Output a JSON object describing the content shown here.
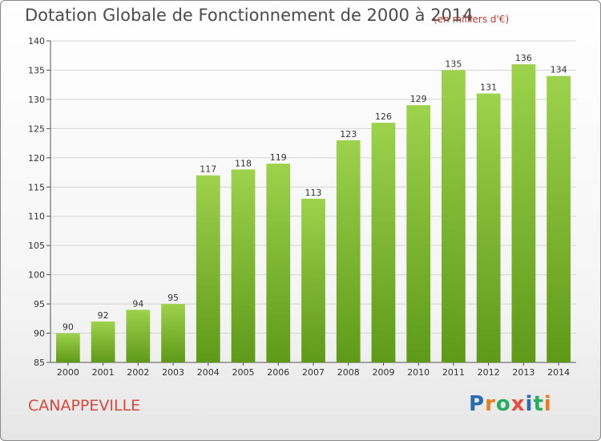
{
  "chart_data": {
    "type": "bar",
    "title": "Dotation Globale de Fonctionnement de 2000 à 2014",
    "unit_note": "(en milliers d'€)",
    "categories": [
      "2000",
      "2001",
      "2002",
      "2003",
      "2004",
      "2005",
      "2006",
      "2007",
      "2008",
      "2009",
      "2010",
      "2011",
      "2012",
      "2013",
      "2014"
    ],
    "values": [
      90,
      92,
      94,
      95,
      117,
      118,
      119,
      113,
      123,
      126,
      129,
      135,
      131,
      136,
      134
    ],
    "value_labels": [
      "90",
      "92",
      "94",
      "95",
      "117",
      "118",
      "119",
      "113",
      "123",
      "126",
      "129",
      "135",
      "131",
      "136",
      "134"
    ],
    "ylim": [
      85,
      140
    ],
    "yticks": [
      85,
      90,
      95,
      100,
      105,
      110,
      115,
      120,
      125,
      130,
      135,
      140
    ],
    "ytick_labels": [
      "85",
      "90",
      "95",
      "100",
      "105",
      "110",
      "115",
      "120",
      "125",
      "130",
      "135",
      "140"
    ],
    "xlabel": "",
    "ylabel": "",
    "grid": true,
    "bar_color": "#7dbb2f"
  },
  "footer": {
    "commune": "CANAPPEVILLE",
    "logo_letters": [
      "P",
      "r",
      "o",
      "x",
      "i",
      "t",
      "i"
    ],
    "logo_colors": [
      "#2b6cb0",
      "#e67e22",
      "#27ae60",
      "#e74c3c",
      "#2b6cb0",
      "#27ae60",
      "#e67e22"
    ]
  }
}
